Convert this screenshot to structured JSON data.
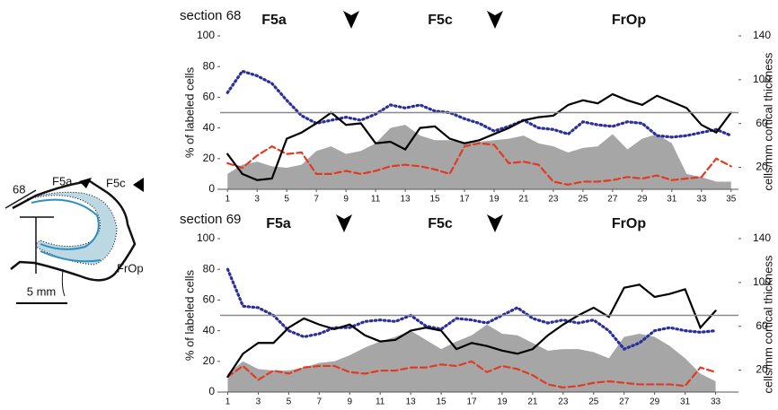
{
  "chart_data": [
    {
      "type": "line",
      "title": "section 68",
      "regions": [
        "F5a",
        "F5c",
        "FrOp"
      ],
      "ylabel": "% of labeled cells",
      "y2label": "cells/mm cortical thickness",
      "x": [
        1,
        2,
        3,
        4,
        5,
        6,
        7,
        8,
        9,
        10,
        11,
        12,
        13,
        14,
        15,
        16,
        17,
        18,
        19,
        20,
        21,
        22,
        23,
        24,
        25,
        26,
        27,
        28,
        29,
        30,
        31,
        32,
        33,
        34,
        35
      ],
      "xlim": [
        0.5,
        35.5
      ],
      "xticks": [
        1,
        3,
        5,
        7,
        9,
        11,
        13,
        15,
        17,
        19,
        21,
        23,
        25,
        27,
        29,
        31,
        33,
        35
      ],
      "ylim": [
        0,
        100
      ],
      "yticks": [
        0,
        20,
        40,
        60,
        80,
        100
      ],
      "y2lim": [
        0,
        140
      ],
      "y2ticks": [
        20,
        60,
        100,
        140
      ],
      "reference_line": 50,
      "series": [
        {
          "style": "area",
          "color": "#a6a6a6",
          "values": [
            10,
            16,
            18,
            15,
            14,
            16,
            25,
            28,
            23,
            25,
            30,
            40,
            42,
            35,
            32,
            32,
            30,
            31,
            32,
            33,
            35,
            30,
            28,
            24,
            27,
            28,
            36,
            26,
            33,
            36,
            30,
            10,
            8,
            5,
            5
          ]
        },
        {
          "style": "dotted",
          "color": "#2b2f9c",
          "values": [
            63,
            77,
            74,
            69,
            58,
            48,
            43,
            45,
            47,
            45,
            49,
            55,
            53,
            55,
            51,
            50,
            46,
            43,
            38,
            41,
            45,
            40,
            39,
            36,
            44,
            42,
            41,
            44,
            43,
            35,
            34,
            35,
            37,
            39,
            35
          ]
        },
        {
          "style": "dashed",
          "color": "#e23a22",
          "values": [
            17,
            14,
            22,
            28,
            23,
            24,
            10,
            10,
            12,
            10,
            12,
            15,
            16,
            15,
            13,
            10,
            28,
            30,
            29,
            17,
            18,
            16,
            5,
            3,
            5,
            5,
            6,
            8,
            7,
            9,
            6,
            7,
            8,
            20,
            15
          ]
        },
        {
          "style": "solid",
          "color": "#000000",
          "values": [
            23,
            10,
            6,
            7,
            33,
            37,
            43,
            50,
            42,
            43,
            30,
            31,
            26,
            40,
            41,
            33,
            30,
            32,
            36,
            40,
            45,
            47,
            48,
            55,
            58,
            56,
            62,
            58,
            55,
            61,
            57,
            53,
            42,
            37,
            50
          ]
        }
      ]
    },
    {
      "type": "line",
      "title": "section 69",
      "regions": [
        "F5a",
        "F5c",
        "FrOp"
      ],
      "ylabel": "% of labeled cells",
      "y2label": "cells/mm cortical thickness",
      "x": [
        1,
        2,
        3,
        4,
        5,
        6,
        7,
        8,
        9,
        10,
        11,
        12,
        13,
        14,
        15,
        16,
        17,
        18,
        19,
        20,
        21,
        22,
        23,
        24,
        25,
        26,
        27,
        28,
        29,
        30,
        31,
        32,
        33
      ],
      "xlim": [
        0.5,
        34.5
      ],
      "xticks": [
        1,
        3,
        5,
        7,
        9,
        11,
        13,
        15,
        17,
        19,
        21,
        23,
        25,
        27,
        29,
        31,
        33
      ],
      "ylim": [
        0,
        100
      ],
      "yticks": [
        0,
        20,
        40,
        60,
        80,
        100
      ],
      "y2lim": [
        0,
        140
      ],
      "y2ticks": [
        20,
        60,
        100,
        140
      ],
      "reference_line": 50,
      "series": [
        {
          "style": "area",
          "color": "#a6a6a6",
          "values": [
            12,
            20,
            15,
            14,
            14,
            16,
            19,
            20,
            24,
            29,
            33,
            36,
            40,
            34,
            28,
            33,
            37,
            44,
            38,
            37,
            32,
            27,
            28,
            28,
            26,
            22,
            36,
            38,
            36,
            30,
            22,
            12,
            7
          ]
        },
        {
          "style": "dotted",
          "color": "#2b2f9c",
          "values": [
            80,
            56,
            55,
            50,
            40,
            36,
            38,
            42,
            42,
            46,
            47,
            46,
            50,
            43,
            41,
            48,
            47,
            45,
            50,
            55,
            48,
            45,
            47,
            45,
            47,
            40,
            28,
            32,
            40,
            42,
            40,
            39,
            40
          ]
        },
        {
          "style": "dashed",
          "color": "#e23a22",
          "values": [
            10,
            17,
            8,
            14,
            12,
            16,
            17,
            17,
            13,
            12,
            14,
            14,
            16,
            16,
            18,
            17,
            20,
            13,
            17,
            15,
            11,
            5,
            3,
            4,
            6,
            7,
            6,
            5,
            5,
            5,
            4,
            16,
            13
          ]
        },
        {
          "style": "solid",
          "color": "#000000",
          "values": [
            10,
            25,
            32,
            32,
            42,
            48,
            44,
            41,
            44,
            37,
            33,
            34,
            40,
            42,
            40,
            28,
            32,
            30,
            27,
            25,
            28,
            37,
            44,
            50,
            55,
            49,
            68,
            70,
            62,
            64,
            67,
            42,
            53
          ]
        }
      ]
    }
  ],
  "section_drawing": {
    "labels": [
      "68",
      "F5a",
      "F5c",
      "FrOp"
    ],
    "scale_bar": "5 mm"
  }
}
